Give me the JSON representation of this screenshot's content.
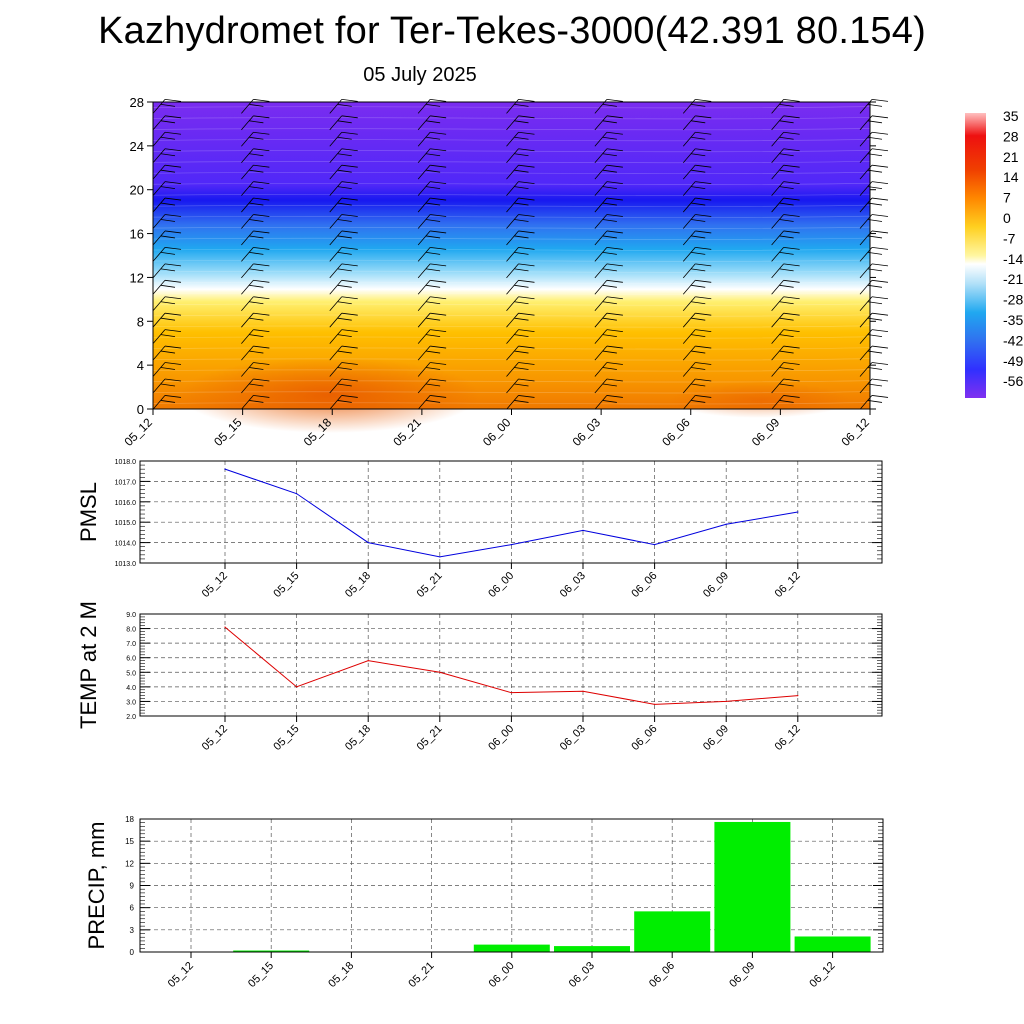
{
  "header": {
    "title": "Kazhydromet for Ter-Tekes-3000(42.391 80.154)",
    "subtitle": "05 July 2025"
  },
  "time_labels": [
    "05_12",
    "05_15",
    "05_18",
    "05_21",
    "06_00",
    "06_03",
    "06_06",
    "06_09",
    "06_12"
  ],
  "colors": {
    "pmsl_line": "#0000dd",
    "temp_line": "#dd0000",
    "precip_bar": "#00ee00",
    "grid": "#555555"
  },
  "chart_data": [
    {
      "id": "cross-section",
      "type": "heatmap",
      "x": [
        "05_12",
        "05_15",
        "05_18",
        "05_21",
        "06_00",
        "06_03",
        "06_06",
        "06_09",
        "06_12"
      ],
      "yticks": [
        0,
        4,
        8,
        12,
        16,
        20,
        24,
        28
      ],
      "ylim": [
        0,
        28
      ],
      "colorbar_labels": [
        "35",
        "28",
        "21",
        "14",
        "7",
        "0",
        "-7",
        "-14",
        "-21",
        "-28",
        "-35",
        "-42",
        "-49",
        "-56"
      ],
      "colorbar_range": [
        -60,
        35
      ]
    },
    {
      "id": "pmsl",
      "type": "line",
      "ylabel": "PMSL",
      "x": [
        "05_12",
        "05_15",
        "05_18",
        "05_21",
        "06_00",
        "06_03",
        "06_06",
        "06_09",
        "06_12"
      ],
      "values": [
        1017.6,
        1016.4,
        1014.0,
        1013.3,
        1013.9,
        1014.6,
        1013.9,
        1014.9,
        1015.5
      ],
      "ylim": [
        1013,
        1018
      ],
      "yticks": [
        "1013.0",
        "1014.0",
        "1015.0",
        "1016.0",
        "1017.0",
        "1018.0"
      ]
    },
    {
      "id": "temp2m",
      "type": "line",
      "ylabel": "TEMP at 2 M",
      "x": [
        "05_12",
        "05_15",
        "05_18",
        "05_21",
        "06_00",
        "06_03",
        "06_06",
        "06_09",
        "06_12"
      ],
      "values": [
        8.1,
        4.0,
        5.8,
        5.0,
        3.6,
        3.7,
        2.8,
        3.0,
        3.4
      ],
      "ylim": [
        2,
        9
      ],
      "yticks": [
        "2.0",
        "3.0",
        "4.0",
        "5.0",
        "6.0",
        "7.0",
        "8.0",
        "9.0"
      ]
    },
    {
      "id": "precip",
      "type": "bar",
      "ylabel": "PRECIP, mm",
      "categories": [
        "05_12",
        "05_15",
        "05_18",
        "05_21",
        "06_00",
        "06_03",
        "06_06",
        "06_09",
        "06_12"
      ],
      "values": [
        0,
        0.2,
        0,
        0,
        1.0,
        0.8,
        5.5,
        17.6,
        2.1
      ],
      "ylim": [
        0,
        18
      ],
      "yticks": [
        "0",
        "3",
        "6",
        "9",
        "12",
        "15",
        "18"
      ]
    }
  ]
}
